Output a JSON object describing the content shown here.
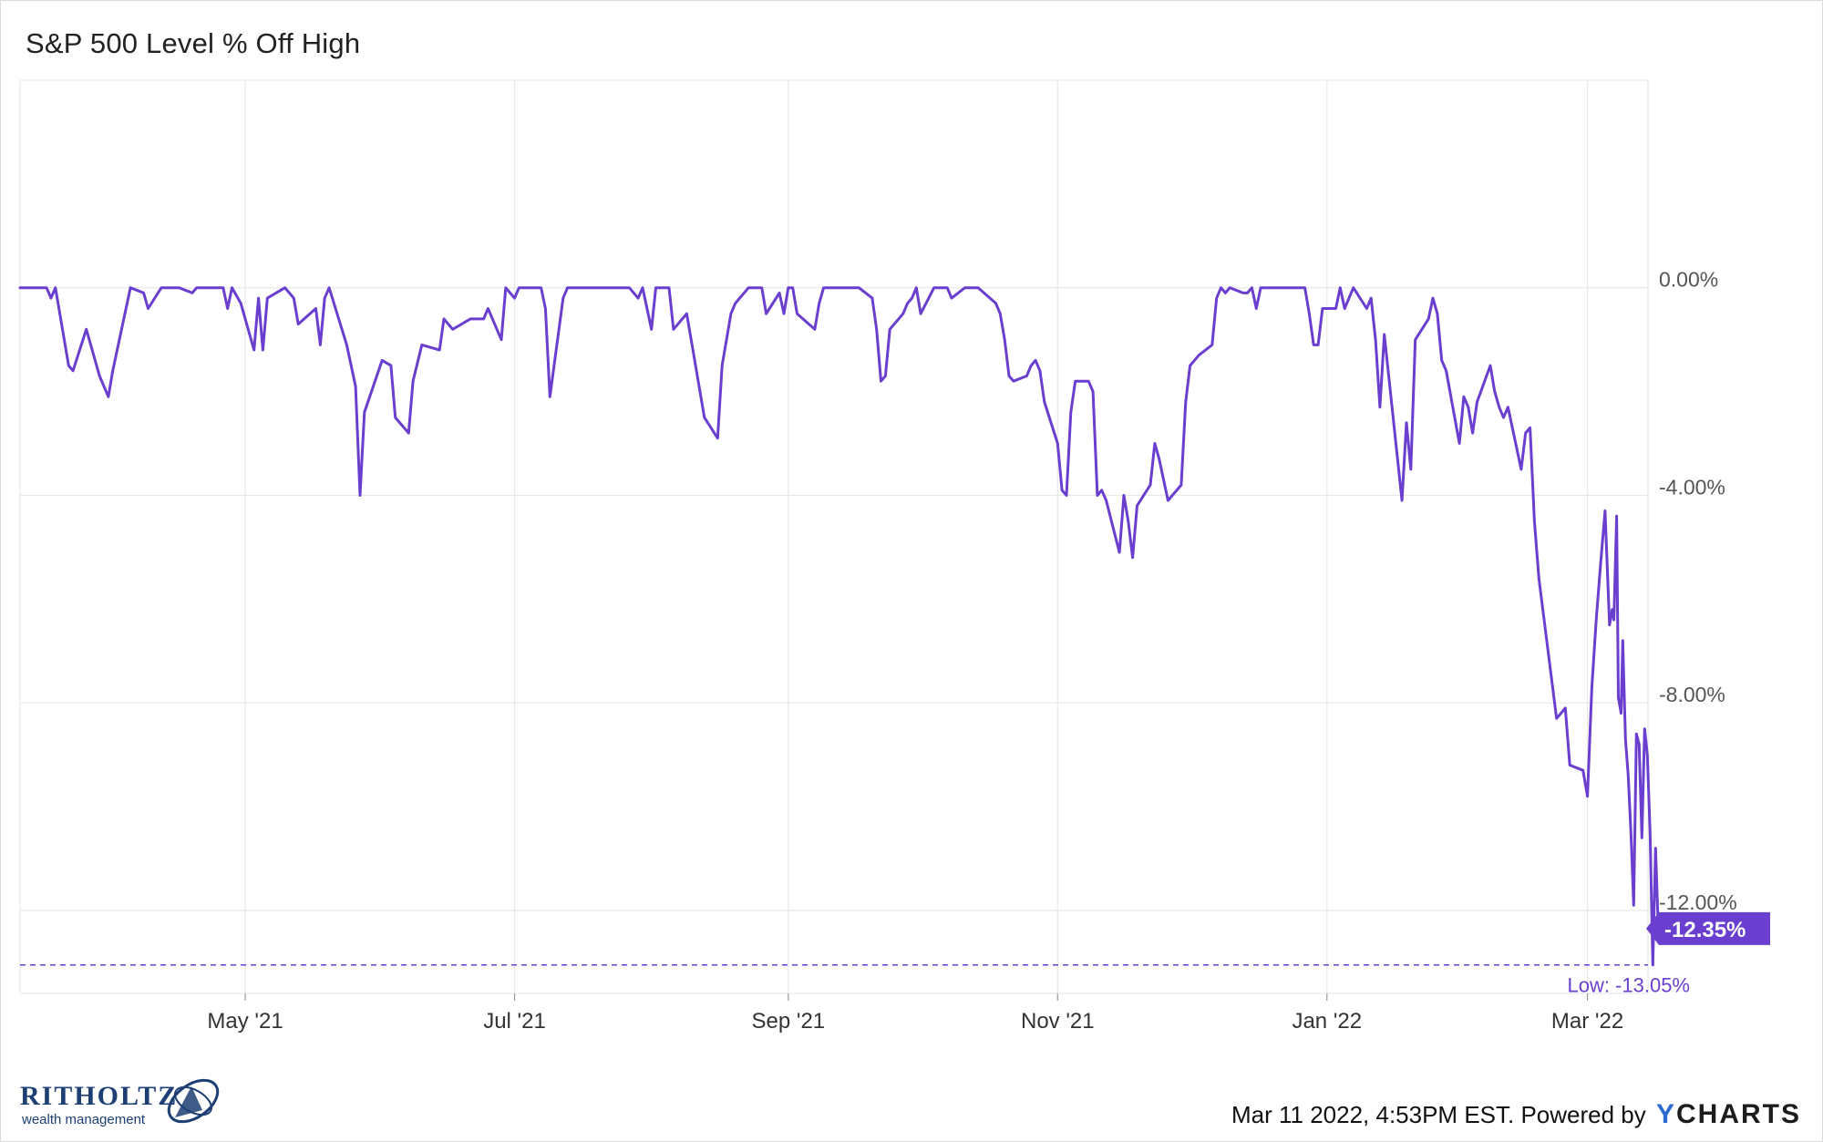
{
  "chart_data": {
    "type": "line",
    "title": "S&P 500 Level % Off High",
    "xlabel": "",
    "ylabel": "",
    "x_tick_labels": [
      "May '21",
      "Jul '21",
      "Sep '21",
      "Nov '21",
      "Jan '22",
      "Mar '22"
    ],
    "x_ticks": [
      "2021-05-01",
      "2021-07-01",
      "2021-09-01",
      "2021-11-01",
      "2022-01-01",
      "2022-03-01"
    ],
    "x_range": [
      "2021-03-11",
      "2022-03-11"
    ],
    "y_tick_labels": [
      "0.00%",
      "-4.00%",
      "-8.00%",
      "-12.00%"
    ],
    "y_ticks": [
      0,
      -4,
      -8,
      -12
    ],
    "ylim": [
      -13.6,
      4.0
    ],
    "grid": true,
    "series": [
      {
        "color": "#6a3fcf",
        "points": [
          [
            "2021-03-11",
            0
          ],
          [
            "2021-03-15",
            0
          ],
          [
            "2021-03-17",
            0
          ],
          [
            "2021-03-18",
            -0.2
          ],
          [
            "2021-03-19",
            0
          ],
          [
            "2021-03-22",
            -1.5
          ],
          [
            "2021-03-23",
            -1.6
          ],
          [
            "2021-03-26",
            -0.8
          ],
          [
            "2021-03-29",
            -1.7
          ],
          [
            "2021-03-31",
            -2.1
          ],
          [
            "2021-04-01",
            -1.6
          ],
          [
            "2021-04-05",
            0
          ],
          [
            "2021-04-08",
            -0.1
          ],
          [
            "2021-04-09",
            -0.4
          ],
          [
            "2021-04-12",
            0
          ],
          [
            "2021-04-16",
            0
          ],
          [
            "2021-04-19",
            -0.1
          ],
          [
            "2021-04-20",
            0
          ],
          [
            "2021-04-26",
            0
          ],
          [
            "2021-04-27",
            -0.4
          ],
          [
            "2021-04-28",
            0
          ],
          [
            "2021-04-30",
            -0.3
          ],
          [
            "2021-05-03",
            -1.2
          ],
          [
            "2021-05-04",
            -0.2
          ],
          [
            "2021-05-05",
            -1.2
          ],
          [
            "2021-05-06",
            -0.2
          ],
          [
            "2021-05-10",
            0
          ],
          [
            "2021-05-12",
            -0.2
          ],
          [
            "2021-05-13",
            -0.7
          ],
          [
            "2021-05-17",
            -0.4
          ],
          [
            "2021-05-18",
            -1.1
          ],
          [
            "2021-05-19",
            -0.2
          ],
          [
            "2021-05-20",
            0
          ],
          [
            "2021-05-24",
            -1.1
          ],
          [
            "2021-05-26",
            -1.9
          ],
          [
            "2021-05-27",
            -4.0
          ],
          [
            "2021-05-28",
            -2.4
          ],
          [
            "2021-06-01",
            -1.4
          ],
          [
            "2021-06-03",
            -1.5
          ],
          [
            "2021-06-04",
            -2.5
          ],
          [
            "2021-06-07",
            -2.8
          ],
          [
            "2021-06-08",
            -1.8
          ],
          [
            "2021-06-10",
            -1.1
          ],
          [
            "2021-06-14",
            -1.2
          ],
          [
            "2021-06-15",
            -0.6
          ],
          [
            "2021-06-17",
            -0.8
          ],
          [
            "2021-06-21",
            -0.6
          ],
          [
            "2021-06-24",
            -0.6
          ],
          [
            "2021-06-25",
            -0.4
          ],
          [
            "2021-06-28",
            -1.0
          ],
          [
            "2021-06-29",
            0
          ],
          [
            "2021-07-01",
            -0.2
          ],
          [
            "2021-07-02",
            0
          ],
          [
            "2021-07-07",
            0
          ],
          [
            "2021-07-08",
            -0.4
          ],
          [
            "2021-07-09",
            -2.1
          ],
          [
            "2021-07-12",
            -0.2
          ],
          [
            "2021-07-13",
            0
          ],
          [
            "2021-07-16",
            0
          ],
          [
            "2021-07-19",
            0
          ],
          [
            "2021-07-26",
            0
          ],
          [
            "2021-07-27",
            0
          ],
          [
            "2021-07-29",
            -0.2
          ],
          [
            "2021-07-30",
            0
          ],
          [
            "2021-08-01",
            -0.8
          ],
          [
            "2021-08-02",
            0
          ],
          [
            "2021-08-05",
            0
          ],
          [
            "2021-08-06",
            -0.8
          ],
          [
            "2021-08-09",
            -0.5
          ],
          [
            "2021-08-11",
            -1.5
          ],
          [
            "2021-08-13",
            -2.5
          ],
          [
            "2021-08-16",
            -2.9
          ],
          [
            "2021-08-17",
            -1.5
          ],
          [
            "2021-08-19",
            -0.5
          ],
          [
            "2021-08-20",
            -0.3
          ],
          [
            "2021-08-23",
            0
          ],
          [
            "2021-08-26",
            0
          ],
          [
            "2021-08-27",
            -0.5
          ],
          [
            "2021-08-30",
            -0.1
          ],
          [
            "2021-08-31",
            -0.5
          ],
          [
            "2021-09-01",
            0
          ],
          [
            "2021-09-02",
            0
          ],
          [
            "2021-09-03",
            -0.5
          ],
          [
            "2021-09-07",
            -0.8
          ],
          [
            "2021-09-08",
            -0.3
          ],
          [
            "2021-09-09",
            0
          ],
          [
            "2021-09-10",
            0
          ],
          [
            "2021-09-13",
            0
          ],
          [
            "2021-09-14",
            0
          ],
          [
            "2021-09-17",
            0
          ],
          [
            "2021-09-20",
            -0.2
          ],
          [
            "2021-09-21",
            -0.8
          ],
          [
            "2021-09-22",
            -1.8
          ],
          [
            "2021-09-23",
            -1.7
          ],
          [
            "2021-09-24",
            -0.8
          ],
          [
            "2021-09-27",
            -0.5
          ],
          [
            "2021-09-28",
            -0.3
          ],
          [
            "2021-09-29",
            -0.2
          ],
          [
            "2021-09-30",
            0
          ],
          [
            "2021-10-01",
            -0.5
          ],
          [
            "2021-10-04",
            0
          ],
          [
            "2021-10-06",
            0
          ],
          [
            "2021-10-07",
            0
          ],
          [
            "2021-10-08",
            -0.2
          ],
          [
            "2021-10-11",
            0
          ],
          [
            "2021-10-13",
            0
          ],
          [
            "2021-10-14",
            0
          ],
          [
            "2021-10-18",
            -0.3
          ],
          [
            "2021-10-19",
            -0.5
          ],
          [
            "2021-10-20",
            -1.0
          ],
          [
            "2021-10-21",
            -1.7
          ],
          [
            "2021-10-22",
            -1.8
          ],
          [
            "2021-10-25",
            -1.7
          ],
          [
            "2021-10-26",
            -1.5
          ],
          [
            "2021-10-27",
            -1.4
          ],
          [
            "2021-10-28",
            -1.6
          ],
          [
            "2021-10-29",
            -2.2
          ],
          [
            "2021-11-01",
            -3.0
          ],
          [
            "2021-11-02",
            -3.9
          ],
          [
            "2021-11-03",
            -4.0
          ],
          [
            "2021-11-04",
            -2.4
          ],
          [
            "2021-11-05",
            -1.8
          ],
          [
            "2021-11-08",
            -1.8
          ],
          [
            "2021-11-09",
            -2.0
          ],
          [
            "2021-11-10",
            -4.0
          ],
          [
            "2021-11-11",
            -3.9
          ],
          [
            "2021-11-12",
            -4.1
          ],
          [
            "2021-11-15",
            -5.1
          ],
          [
            "2021-11-16",
            -4.0
          ],
          [
            "2021-11-17",
            -4.5
          ],
          [
            "2021-11-18",
            -5.2
          ],
          [
            "2021-11-19",
            -4.2
          ],
          [
            "2021-11-22",
            -3.8
          ],
          [
            "2021-11-23",
            -3.0
          ],
          [
            "2021-11-24",
            -3.3
          ],
          [
            "2021-11-26",
            -4.1
          ],
          [
            "2021-11-29",
            -3.8
          ],
          [
            "2021-11-30",
            -2.2
          ],
          [
            "2021-12-01",
            -1.5
          ],
          [
            "2021-12-03",
            -1.3
          ],
          [
            "2021-12-06",
            -1.1
          ],
          [
            "2021-12-07",
            -0.2
          ],
          [
            "2021-12-08",
            0
          ],
          [
            "2021-12-09",
            -0.1
          ],
          [
            "2021-12-10",
            0
          ],
          [
            "2021-12-13",
            -0.1
          ],
          [
            "2021-12-14",
            -0.1
          ],
          [
            "2021-12-15",
            0
          ],
          [
            "2021-12-16",
            -0.4
          ],
          [
            "2021-12-17",
            0
          ],
          [
            "2021-12-20",
            0
          ],
          [
            "2021-12-21",
            0
          ],
          [
            "2021-12-22",
            0
          ],
          [
            "2021-12-23",
            0
          ],
          [
            "2021-12-27",
            0
          ],
          [
            "2021-12-28",
            -0.5
          ],
          [
            "2021-12-29",
            -1.1
          ],
          [
            "2021-12-30",
            -1.1
          ],
          [
            "2021-12-31",
            -0.4
          ],
          [
            "2022-01-03",
            -0.4
          ],
          [
            "2022-01-04",
            0
          ],
          [
            "2022-01-05",
            -0.4
          ],
          [
            "2022-01-06",
            -0.2
          ],
          [
            "2022-01-07",
            0
          ],
          [
            "2022-01-10",
            -0.4
          ],
          [
            "2022-01-11",
            -0.2
          ],
          [
            "2022-01-12",
            -1.0
          ],
          [
            "2022-01-13",
            -2.3
          ],
          [
            "2022-01-14",
            -0.9
          ],
          [
            "2022-01-18",
            -4.1
          ],
          [
            "2022-01-19",
            -2.6
          ],
          [
            "2022-01-20",
            -3.5
          ],
          [
            "2022-01-21",
            -1.0
          ],
          [
            "2022-01-24",
            -0.6
          ],
          [
            "2022-01-25",
            -0.2
          ],
          [
            "2022-01-26",
            -0.5
          ],
          [
            "2022-01-27",
            -1.4
          ],
          [
            "2022-01-28",
            -1.6
          ],
          [
            "2022-01-31",
            -3.0
          ],
          [
            "2022-02-01",
            -2.1
          ],
          [
            "2022-02-02",
            -2.3
          ],
          [
            "2022-02-03",
            -2.8
          ],
          [
            "2022-02-04",
            -2.2
          ],
          [
            "2022-02-07",
            -1.5
          ],
          [
            "2022-02-08",
            -2.0
          ],
          [
            "2022-02-09",
            -2.3
          ],
          [
            "2022-02-10",
            -2.5
          ],
          [
            "2022-02-11",
            -2.3
          ],
          [
            "2022-02-14",
            -3.5
          ],
          [
            "2022-02-15",
            -2.8
          ],
          [
            "2022-02-16",
            -2.7
          ],
          [
            "2022-02-17",
            -4.5
          ],
          [
            "2022-02-18",
            -5.6
          ],
          [
            "2022-02-22",
            -8.3
          ],
          [
            "2022-02-23",
            -8.2
          ],
          [
            "2022-02-24",
            -8.1
          ],
          [
            "2022-02-25",
            -9.2
          ],
          [
            "2022-02-28",
            -9.3
          ],
          [
            "2022-03-01",
            -9.8
          ],
          [
            "2022-03-02",
            -7.7
          ],
          [
            "2022-03-03",
            -6.4
          ],
          [
            "2022-03-04",
            -5.3
          ],
          [
            "2022-03-05",
            -4.3
          ],
          [
            "2022-03-06",
            -6.5
          ],
          [
            "2022-03-06",
            -6.2
          ],
          [
            "2022-03-07",
            -6.4
          ],
          [
            "2022-03-07",
            -4.4
          ],
          [
            "2022-03-08",
            -7.9
          ],
          [
            "2022-03-08",
            -8.2
          ],
          [
            "2022-03-09",
            -6.8
          ],
          [
            "2022-03-09",
            -8.7
          ],
          [
            "2022-03-09",
            -9.4
          ],
          [
            "2022-03-09",
            -10.5
          ],
          [
            "2022-03-10",
            -11.9
          ],
          [
            "2022-03-10",
            -8.6
          ],
          [
            "2022-03-10",
            -8.8
          ],
          [
            "2022-03-10",
            -10.6
          ],
          [
            "2022-03-10",
            -8.5
          ],
          [
            "2022-03-10",
            -9.0
          ],
          [
            "2022-03-10",
            -10.5
          ],
          [
            "2022-03-11",
            -13.05
          ],
          [
            "2022-03-11",
            -10.8
          ],
          [
            "2022-03-11",
            -12.35
          ]
        ]
      }
    ],
    "last_value_label": "-12.35%",
    "low_label": "Low: -13.05%",
    "low_value": -13.05,
    "last_value": -12.35
  },
  "footer": {
    "logo_name": "RITHOLTZ",
    "logo_sub": "wealth management",
    "timestamp": "Mar 11 2022, 4:53PM EST. Powered by",
    "ycharts_y": "Y",
    "ycharts_rest": "CHARTS"
  },
  "colors": {
    "line": "#6a3fcf",
    "grid": "#e8e8e8",
    "badge": "#6a3fcf",
    "brand_ritholtz": "#1d3f73",
    "brand_ycharts": "#2b6ad0"
  }
}
